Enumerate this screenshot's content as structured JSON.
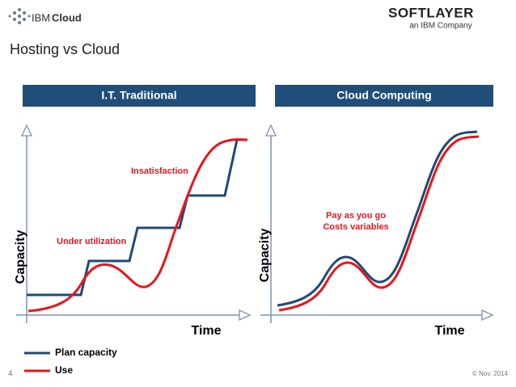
{
  "header": {
    "logo_left": {
      "brand": "IBM",
      "product": "Cloud"
    },
    "logo_right": {
      "name": "SOFTLAYER",
      "tagline": "an IBM Company"
    }
  },
  "title": "Hosting vs Cloud",
  "panels": [
    {
      "heading": "I.T. Traditional",
      "y_label": "Capacity",
      "x_label": "Time",
      "annotations": [
        "Insatisfaction",
        "Under utilization"
      ]
    },
    {
      "heading": "Cloud Computing",
      "y_label": "Capacity",
      "x_label": "Time",
      "annotations": [
        "Pay as you go",
        "Costs variables"
      ]
    }
  ],
  "legend": [
    "Plan capacity",
    "Use"
  ],
  "footer": {
    "page": "4",
    "date": "© Nov. 2014"
  }
}
